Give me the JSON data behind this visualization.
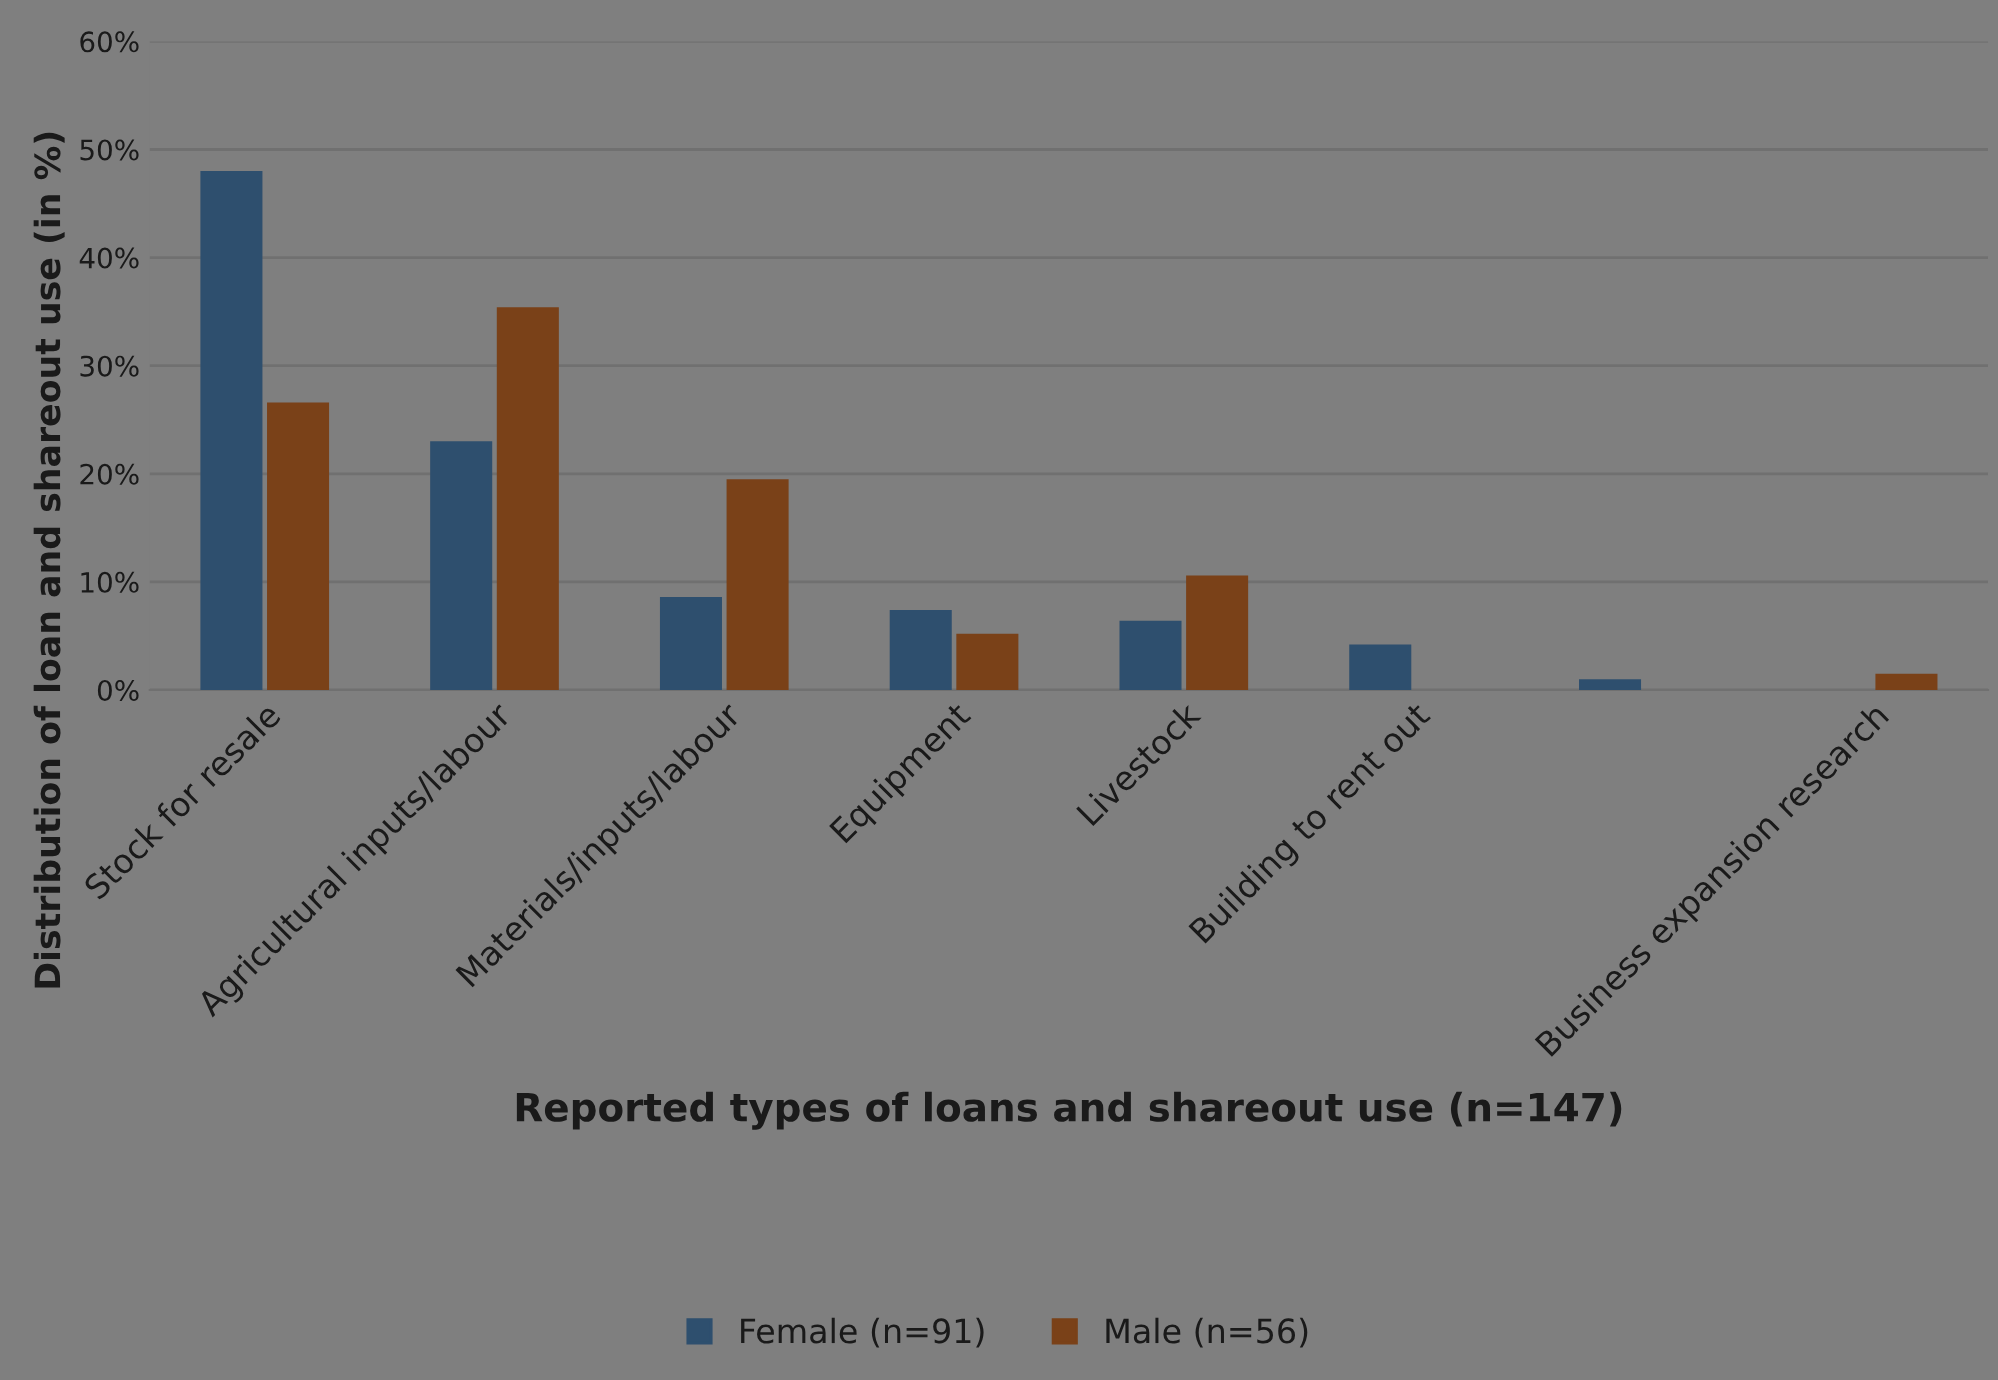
{
  "chart_data": {
    "type": "bar",
    "xlabel": "Reported types of loans and shareout use (n=147)",
    "ylabel": "Distribution of loan and shareout use (in %)",
    "categories": [
      "Stock for resale",
      "Agricultural inputs/labour",
      "Materials/inputs/labour",
      "Equipment",
      "Livestock",
      "Building to rent out",
      null,
      "Business expansion research"
    ],
    "series": [
      {
        "name": "Female (n=91)",
        "color": "#2e4f6e",
        "values": [
          48,
          23,
          8.6,
          7.4,
          6.4,
          4.2,
          1.0,
          0
        ]
      },
      {
        "name": "Male (n=56)",
        "color": "#7a4118",
        "values": [
          26.6,
          35.4,
          19.5,
          5.2,
          10.6,
          0,
          0,
          1.5
        ]
      }
    ],
    "ylim": [
      0,
      60
    ],
    "yticks": [
      {
        "value": 0,
        "label": "0%"
      },
      {
        "value": 10,
        "label": "10%"
      },
      {
        "value": 20,
        "label": "20%"
      },
      {
        "value": 30,
        "label": "30%"
      },
      {
        "value": 40,
        "label": "40%"
      },
      {
        "value": 50,
        "label": "50%"
      },
      {
        "value": 60,
        "label": "60%"
      }
    ],
    "grid": "y",
    "legend": "bottom"
  }
}
